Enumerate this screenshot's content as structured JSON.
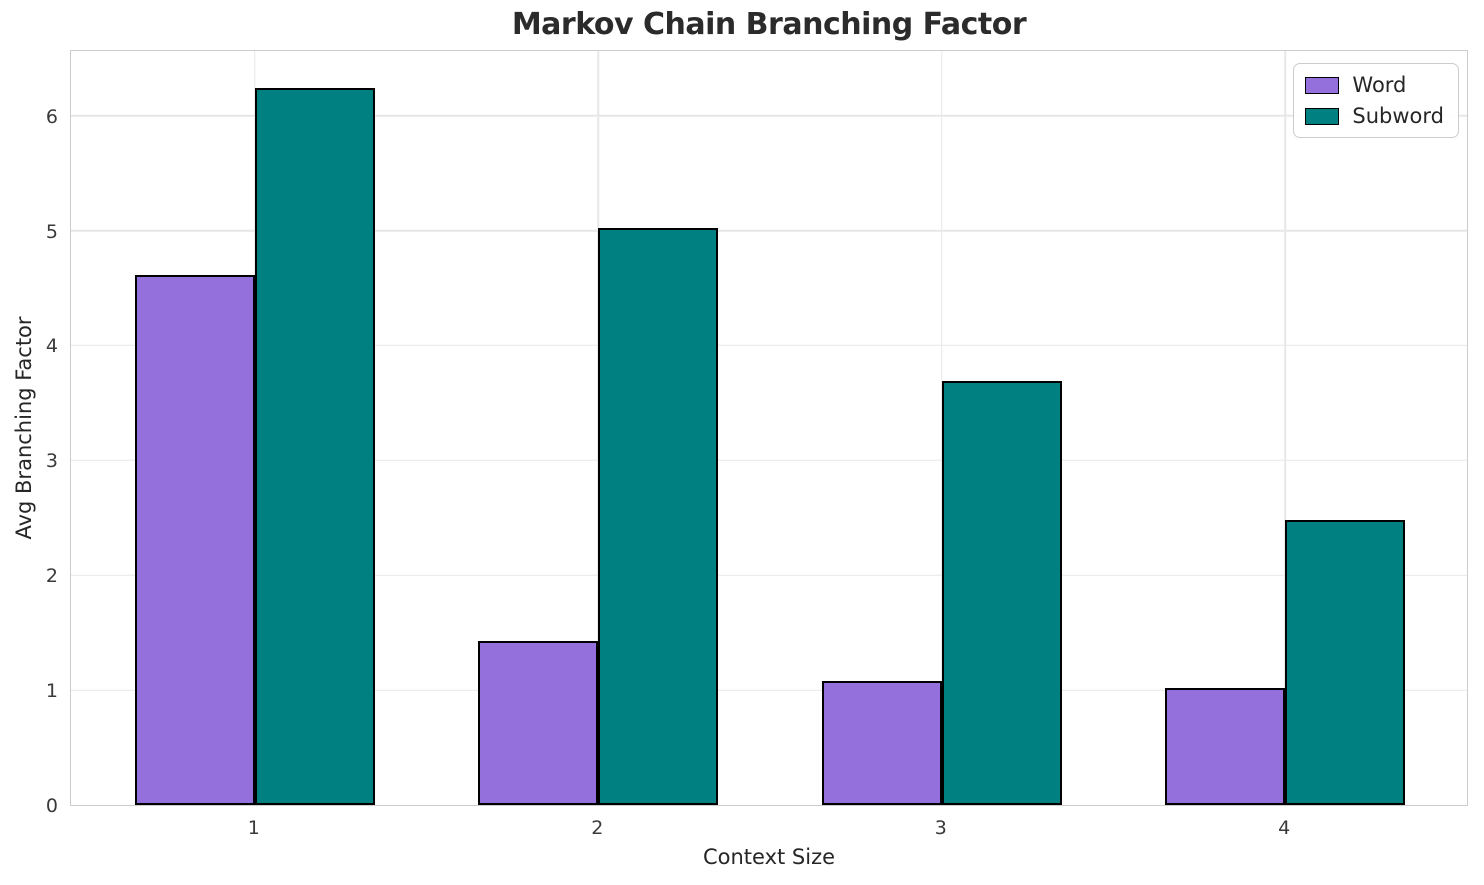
{
  "title": "Markov Chain Branching Factor",
  "chart_data": {
    "type": "bar",
    "title": "Markov Chain Branching Factor",
    "xlabel": "Context Size",
    "ylabel": "Avg Branching Factor",
    "categories": [
      "1",
      "2",
      "3",
      "4"
    ],
    "series": [
      {
        "name": "Word",
        "color": "#9370DB",
        "values": [
          4.61,
          1.43,
          1.08,
          1.02
        ]
      },
      {
        "name": "Subword",
        "color": "#008080",
        "values": [
          6.24,
          5.02,
          3.69,
          2.48
        ]
      }
    ],
    "bar_width": 0.35,
    "bar_edge_color": "#000000",
    "xlim": [
      0.465,
      4.535
    ],
    "ylim": [
      0,
      6.58
    ],
    "yticks": [
      0,
      1,
      2,
      3,
      4,
      5,
      6
    ],
    "grid": true,
    "legend_position": "upper right",
    "style": {
      "background": "#ffffff",
      "grid_color": "#e7e7e7",
      "spine_color": "#cccccc",
      "text_color": "#262626",
      "tick_color": "#3a3a3a"
    }
  }
}
